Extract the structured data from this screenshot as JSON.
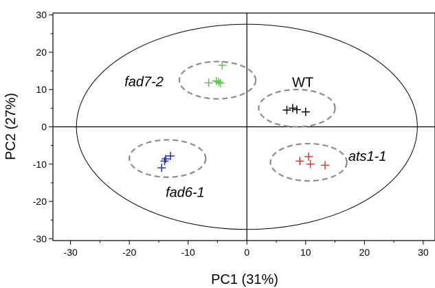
{
  "chart_data": {
    "type": "scatter",
    "title": "",
    "xlabel": "PC1 (31%)",
    "ylabel": "PC2 (27%)",
    "xlim": [
      -33,
      32
    ],
    "ylim": [
      -30.5,
      30.5
    ],
    "xticks": [
      -30,
      -20,
      -10,
      0,
      10,
      20,
      30
    ],
    "yticks": [
      -30,
      -20,
      -10,
      0,
      10,
      20,
      30
    ],
    "xtick_labels": [
      "-30",
      "-20",
      "-10",
      "0",
      "10",
      "20",
      "30"
    ],
    "ytick_labels": [
      "-30",
      "-20",
      "-10",
      "0",
      "10",
      "20",
      "30"
    ],
    "grid": false,
    "marker": "plus",
    "confidence_ellipse": {
      "cx": 0,
      "cy": 0,
      "rx": 29,
      "ry": 27.5
    },
    "groups": [
      {
        "name": "fad7-2",
        "italic": true,
        "color": "#5dc74a",
        "label_at": [
          -17.5,
          12.2
        ],
        "label_anchor": "middle",
        "circle": {
          "cx": -5,
          "cy": 12.5,
          "rx": 6.5,
          "ry": 5
        },
        "points": [
          [
            -4.2,
            16.5
          ],
          [
            -6.5,
            11.8
          ],
          [
            -5.2,
            12.3
          ],
          [
            -4.8,
            12.0
          ],
          [
            -4.5,
            11.7
          ]
        ]
      },
      {
        "name": "WT",
        "italic": false,
        "color": "#000000",
        "label_at": [
          9.5,
          12.0
        ],
        "label_anchor": "middle",
        "circle": {
          "cx": 8.5,
          "cy": 5,
          "rx": 6.5,
          "ry": 5
        },
        "points": [
          [
            6.8,
            4.5
          ],
          [
            7.8,
            5.0
          ],
          [
            8.5,
            4.6
          ],
          [
            10.0,
            4.0
          ]
        ]
      },
      {
        "name": "fad6-1",
        "italic": true,
        "color": "#1f33a6",
        "label_at": [
          -10.5,
          -17.5
        ],
        "label_anchor": "middle",
        "circle": {
          "cx": -13.5,
          "cy": -8.5,
          "rx": 6.5,
          "ry": 5
        },
        "points": [
          [
            -13.0,
            -7.8
          ],
          [
            -13.8,
            -8.6
          ],
          [
            -14.0,
            -9.2
          ],
          [
            -14.5,
            -11.0
          ]
        ]
      },
      {
        "name": "ats1-1",
        "italic": true,
        "color": "#d93a2b",
        "label_at": [
          20.5,
          -7.8
        ],
        "label_anchor": "middle",
        "circle": {
          "cx": 10.5,
          "cy": -9.5,
          "rx": 6.5,
          "ry": 5
        },
        "points": [
          [
            9.0,
            -9.2
          ],
          [
            10.5,
            -8.0
          ],
          [
            10.8,
            -10.0
          ],
          [
            13.3,
            -10.3
          ]
        ]
      }
    ]
  }
}
